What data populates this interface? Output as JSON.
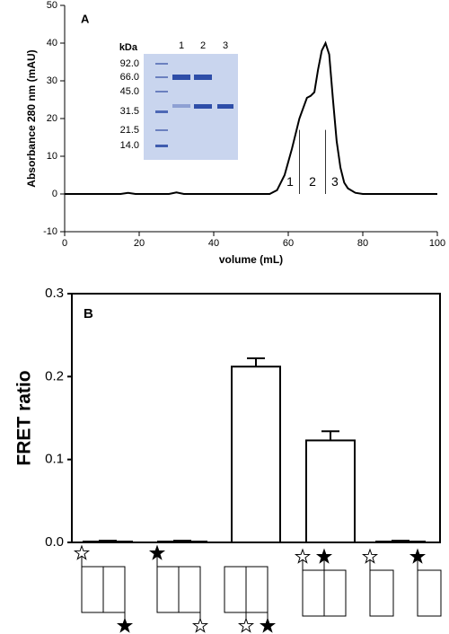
{
  "chart_data": [
    {
      "type": "line",
      "panel": "A",
      "x_label": "volume (mL)",
      "y_label": "Absorbance 280 nm (mAU)",
      "xlim": [
        0,
        100
      ],
      "ylim": [
        -10,
        50
      ],
      "xticks": [
        0,
        20,
        40,
        60,
        80,
        100
      ],
      "yticks": [
        -10,
        0,
        10,
        20,
        30,
        40,
        50
      ],
      "color": "#000000",
      "x": [
        0,
        15,
        17,
        19,
        28,
        30,
        32,
        40,
        50,
        55,
        57,
        59,
        61,
        63,
        65,
        66,
        67,
        68,
        69,
        70,
        71,
        72,
        73,
        74,
        75,
        76,
        78,
        80,
        100
      ],
      "values": [
        0,
        0,
        0.3,
        0,
        0,
        0.4,
        0,
        0,
        0,
        0,
        1,
        5,
        12,
        20,
        25.5,
        26,
        27,
        33,
        38,
        40,
        37,
        25,
        14,
        7,
        3,
        1.5,
        0.3,
        0,
        0
      ],
      "fraction_bounds": [
        63,
        70
      ],
      "fractions": [
        {
          "x": 60.5,
          "label": "1"
        },
        {
          "x": 66.5,
          "label": "2"
        },
        {
          "x": 72.5,
          "label": "3"
        }
      ],
      "inset": {
        "header": "kDa",
        "markers": [
          "92.0",
          "66.0",
          "45.0",
          "31.5",
          "21.5",
          "14.0"
        ],
        "lanes": [
          "1",
          "2",
          "3"
        ]
      }
    },
    {
      "type": "bar",
      "panel": "B",
      "y_label": "FRET ratio",
      "categories": [
        null,
        null,
        null,
        null,
        null
      ],
      "values": [
        0.001,
        0.001,
        0.212,
        0.123,
        0.001
      ],
      "errors": [
        0.001,
        0.001,
        0.01,
        0.011,
        0.001
      ],
      "ylim": [
        0,
        0.3
      ],
      "yticks": [
        {
          "value": 0,
          "label": "0.0"
        },
        0.1,
        0.2,
        0.3
      ],
      "color": "#ffffff"
    }
  ]
}
